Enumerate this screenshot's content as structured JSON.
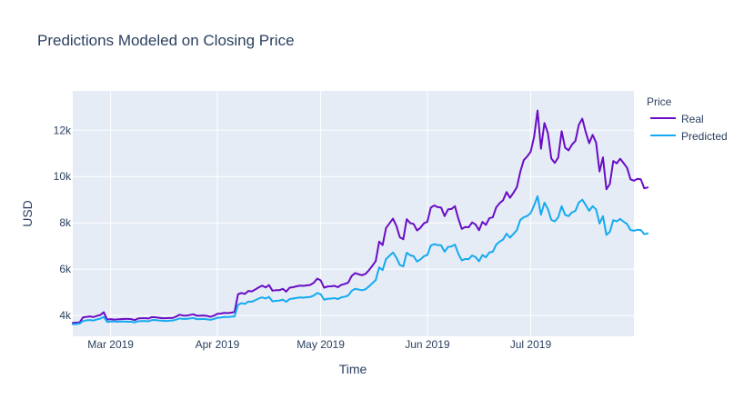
{
  "chart_data": {
    "type": "line",
    "title": "Predictions Modeled on Closing Price",
    "xlabel": "Time",
    "ylabel": "USD",
    "x_start": "2019-02-18",
    "x_end": "2019-07-31",
    "ylim": [
      3100,
      13700
    ],
    "x_ticks": [
      {
        "date": "2019-03-01",
        "label": "Mar 2019"
      },
      {
        "date": "2019-04-01",
        "label": "Apr 2019"
      },
      {
        "date": "2019-05-01",
        "label": "May 2019"
      },
      {
        "date": "2019-06-01",
        "label": "Jun 2019"
      },
      {
        "date": "2019-07-01",
        "label": "Jul 2019"
      }
    ],
    "y_ticks": [
      {
        "value": 4000,
        "label": "4k"
      },
      {
        "value": 6000,
        "label": "6k"
      },
      {
        "value": 8000,
        "label": "8k"
      },
      {
        "value": 10000,
        "label": "10k"
      },
      {
        "value": 12000,
        "label": "12k"
      }
    ],
    "legend": {
      "title": "Price",
      "position": "top-right"
    },
    "grid": true,
    "series": [
      {
        "name": "Real",
        "color": "#6a0dc5",
        "start_date": "2019-02-18",
        "values": [
          3680,
          3690,
          3700,
          3920,
          3940,
          3960,
          3930,
          3980,
          4020,
          4140,
          3820,
          3840,
          3820,
          3830,
          3840,
          3850,
          3850,
          3840,
          3800,
          3870,
          3880,
          3880,
          3870,
          3930,
          3920,
          3900,
          3880,
          3880,
          3890,
          3890,
          3950,
          4030,
          4000,
          3990,
          4020,
          4050,
          3990,
          3990,
          4000,
          3980,
          3940,
          3990,
          4070,
          4080,
          4110,
          4100,
          4120,
          4150,
          4920,
          4970,
          4930,
          5060,
          5040,
          5120,
          5210,
          5290,
          5210,
          5310,
          5070,
          5090,
          5090,
          5150,
          5030,
          5200,
          5220,
          5260,
          5290,
          5280,
          5300,
          5320,
          5410,
          5590,
          5520,
          5200,
          5250,
          5260,
          5280,
          5220,
          5320,
          5360,
          5420,
          5700,
          5830,
          5780,
          5740,
          5790,
          5950,
          6140,
          6350,
          7190,
          7040,
          7780,
          7980,
          8180,
          7870,
          7380,
          7290,
          8160,
          7990,
          7950,
          7670,
          7790,
          7980,
          8050,
          8660,
          8750,
          8680,
          8660,
          8290,
          8580,
          8600,
          8720,
          8180,
          7740,
          7820,
          7810,
          8020,
          7930,
          7680,
          8040,
          7910,
          8200,
          8240,
          8670,
          8850,
          8980,
          9330,
          9080,
          9300,
          9540,
          10210,
          10710,
          10870,
          11070,
          11710,
          12850,
          11200,
          12310,
          11880,
          10780,
          10590,
          10820,
          11960,
          11250,
          11130,
          11380,
          11540,
          12240,
          12500,
          11920,
          11440,
          11800,
          11470,
          10220,
          10830,
          9450,
          9680,
          10670,
          10570,
          10770,
          10580,
          10380,
          9880,
          9820,
          9900,
          9880,
          9490,
          9530
        ]
      },
      {
        "name": "Predicted",
        "color": "#15aaf0",
        "start_date": "2019-02-18",
        "values": [
          3620,
          3630,
          3650,
          3760,
          3790,
          3800,
          3780,
          3830,
          3860,
          3940,
          3720,
          3740,
          3740,
          3730,
          3740,
          3740,
          3730,
          3730,
          3700,
          3750,
          3760,
          3760,
          3750,
          3800,
          3800,
          3780,
          3770,
          3760,
          3770,
          3780,
          3820,
          3870,
          3850,
          3850,
          3870,
          3890,
          3840,
          3840,
          3850,
          3830,
          3810,
          3850,
          3900,
          3910,
          3940,
          3930,
          3950,
          3960,
          4460,
          4530,
          4500,
          4600,
          4590,
          4660,
          4730,
          4780,
          4730,
          4800,
          4610,
          4630,
          4640,
          4680,
          4590,
          4710,
          4730,
          4760,
          4780,
          4770,
          4790,
          4800,
          4860,
          4970,
          4920,
          4680,
          4720,
          4730,
          4750,
          4710,
          4780,
          4810,
          4860,
          5060,
          5150,
          5120,
          5090,
          5130,
          5250,
          5390,
          5530,
          6080,
          5960,
          6440,
          6580,
          6720,
          6500,
          6180,
          6120,
          6710,
          6600,
          6560,
          6330,
          6420,
          6560,
          6610,
          7020,
          7080,
          7040,
          7030,
          6750,
          6960,
          6980,
          7060,
          6660,
          6380,
          6440,
          6430,
          6590,
          6520,
          6340,
          6610,
          6510,
          6720,
          6750,
          7060,
          7190,
          7280,
          7530,
          7360,
          7520,
          7690,
          8130,
          8240,
          8300,
          8420,
          8750,
          9150,
          8350,
          8870,
          8600,
          8130,
          8060,
          8240,
          8720,
          8350,
          8290,
          8450,
          8520,
          8880,
          9000,
          8770,
          8520,
          8720,
          8580,
          7970,
          8290,
          7480,
          7610,
          8120,
          8060,
          8170,
          8050,
          7950,
          7690,
          7660,
          7700,
          7690,
          7510,
          7540
        ]
      }
    ]
  }
}
